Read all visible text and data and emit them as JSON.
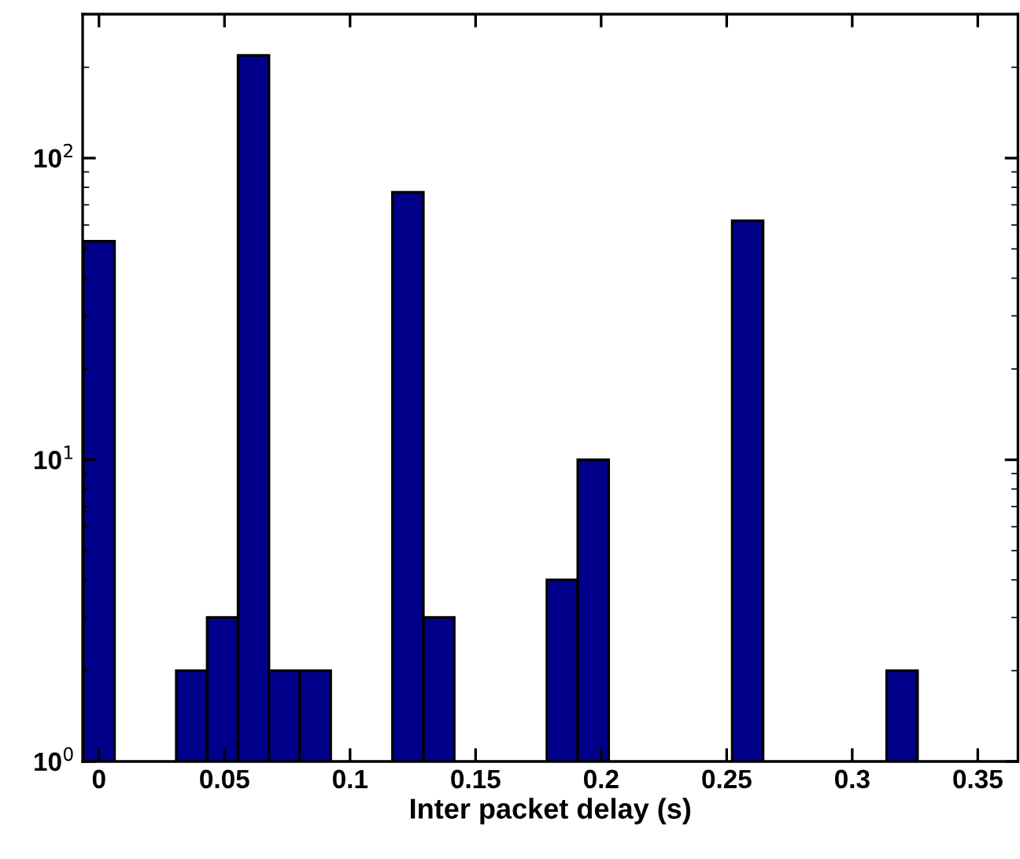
{
  "chart_data": {
    "type": "histogram",
    "xlabel": "Inter packet delay (s)",
    "color": "#00008b",
    "bins": [
      -0.0062,
      0.0062,
      0.0185,
      0.0308,
      0.0431,
      0.0554,
      0.0677,
      0.08,
      0.0923,
      0.1046,
      0.1169,
      0.1292,
      0.1415,
      0.1538,
      0.1661,
      0.1784,
      0.1907,
      0.203,
      0.2153,
      0.2276,
      0.2399,
      0.2522,
      0.2645,
      0.2768,
      0.2891,
      0.3014,
      0.3137,
      0.326
    ],
    "values": [
      53,
      null,
      null,
      2,
      3,
      219,
      2,
      2,
      null,
      null,
      77,
      3,
      null,
      null,
      null,
      4,
      10,
      null,
      null,
      null,
      null,
      62,
      null,
      null,
      null,
      null,
      2
    ],
    "log": "y",
    "xlim": [
      -0.0065,
      0.366
    ],
    "ylim": [
      1,
      300
    ],
    "xticks": [
      0,
      0.05,
      0.1,
      0.15,
      0.2,
      0.25,
      0.3,
      0.35
    ],
    "yticks": [
      {
        "value": 1,
        "label": "10$^{0}$"
      },
      {
        "value": 10,
        "label": "10$^{1}$"
      },
      {
        "value": 100,
        "label": "10$^{2}$"
      }
    ],
    "grid": false,
    "legend": false
  }
}
